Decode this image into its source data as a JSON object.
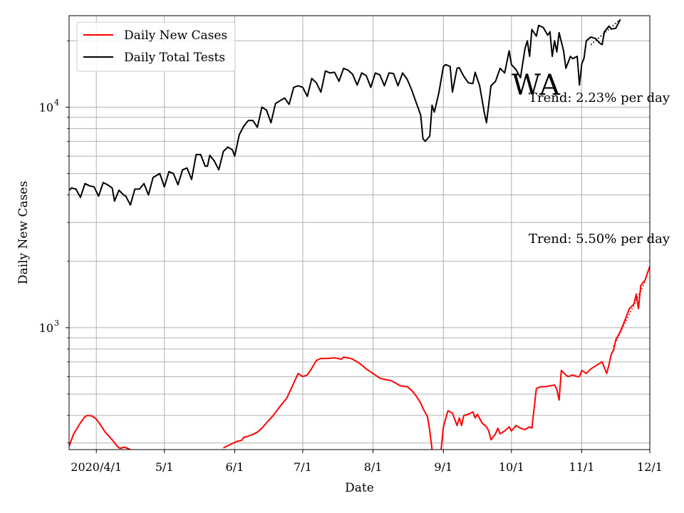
{
  "chart_data": {
    "type": "line",
    "title": "WA",
    "xlabel": "Date",
    "ylabel": "Daily New Cases",
    "yscale": "log",
    "ylim": [
      280,
      26000
    ],
    "xlim": [
      "2020-03-20",
      "2020-12-01"
    ],
    "x_ticks": [
      {
        "date": "2020-04-01",
        "label": "2020/4/1"
      },
      {
        "date": "2020-05-01",
        "label": "5/1"
      },
      {
        "date": "2020-06-01",
        "label": "6/1"
      },
      {
        "date": "2020-07-01",
        "label": "7/1"
      },
      {
        "date": "2020-08-01",
        "label": "8/1"
      },
      {
        "date": "2020-09-01",
        "label": "9/1"
      },
      {
        "date": "2020-10-01",
        "label": "10/1"
      },
      {
        "date": "2020-11-01",
        "label": "11/1"
      },
      {
        "date": "2020-12-01",
        "label": "12/1"
      }
    ],
    "y_ticks": [
      {
        "value": 1000,
        "base": "10",
        "exp": "3"
      },
      {
        "value": 10000,
        "base": "10",
        "exp": "4"
      }
    ],
    "grid": true,
    "legend": "top-left",
    "series": [
      {
        "name": "Daily New Cases",
        "color": "#ff0000",
        "points": [
          [
            "2020-03-20",
            290
          ],
          [
            "2020-03-22",
            330
          ],
          [
            "2020-03-25",
            370
          ],
          [
            "2020-03-27",
            395
          ],
          [
            "2020-03-28",
            400
          ],
          [
            "2020-03-30",
            398
          ],
          [
            "2020-04-01",
            385
          ],
          [
            "2020-04-03",
            360
          ],
          [
            "2020-04-05",
            335
          ],
          [
            "2020-04-08",
            310
          ],
          [
            "2020-04-10",
            292
          ],
          [
            "2020-04-11",
            285
          ],
          [
            "2020-04-12",
            284
          ],
          [
            "2020-04-13",
            287
          ],
          [
            "2020-04-14",
            286
          ],
          [
            "2020-04-16",
            280
          ],
          null,
          [
            "2020-05-27",
            285
          ],
          [
            "2020-05-30",
            295
          ],
          [
            "2020-06-02",
            305
          ],
          [
            "2020-06-04",
            308
          ],
          [
            "2020-06-05",
            318
          ],
          [
            "2020-06-07",
            322
          ],
          [
            "2020-06-09",
            328
          ],
          [
            "2020-06-11",
            336
          ],
          [
            "2020-06-13",
            350
          ],
          [
            "2020-06-15",
            370
          ],
          [
            "2020-06-18",
            400
          ],
          [
            "2020-06-21",
            440
          ],
          [
            "2020-06-24",
            480
          ],
          [
            "2020-06-27",
            560
          ],
          [
            "2020-06-29",
            620
          ],
          [
            "2020-07-01",
            600
          ],
          [
            "2020-07-03",
            610
          ],
          [
            "2020-07-05",
            655
          ],
          [
            "2020-07-07",
            710
          ],
          [
            "2020-07-09",
            725
          ],
          [
            "2020-07-12",
            725
          ],
          [
            "2020-07-15",
            730
          ],
          [
            "2020-07-18",
            720
          ],
          [
            "2020-07-19",
            735
          ],
          [
            "2020-07-21",
            730
          ],
          [
            "2020-07-23",
            720
          ],
          [
            "2020-07-26",
            690
          ],
          [
            "2020-07-29",
            650
          ],
          [
            "2020-08-01",
            620
          ],
          [
            "2020-08-04",
            590
          ],
          [
            "2020-08-07",
            580
          ],
          [
            "2020-08-09",
            575
          ],
          [
            "2020-08-11",
            560
          ],
          [
            "2020-08-13",
            545
          ],
          [
            "2020-08-16",
            540
          ],
          [
            "2020-08-18",
            520
          ],
          [
            "2020-08-20",
            490
          ],
          [
            "2020-08-22",
            455
          ],
          [
            "2020-08-23",
            430
          ],
          [
            "2020-08-25",
            395
          ],
          [
            "2020-08-26",
            340
          ],
          [
            "2020-08-27",
            280
          ],
          null,
          [
            "2020-08-31",
            280
          ],
          [
            "2020-09-01",
            355
          ],
          [
            "2020-09-03",
            420
          ],
          [
            "2020-09-05",
            410
          ],
          [
            "2020-09-07",
            360
          ],
          [
            "2020-09-08",
            390
          ],
          [
            "2020-09-09",
            360
          ],
          [
            "2020-09-10",
            400
          ],
          [
            "2020-09-12",
            405
          ],
          [
            "2020-09-14",
            415
          ],
          [
            "2020-09-15",
            390
          ],
          [
            "2020-09-16",
            405
          ],
          [
            "2020-09-18",
            370
          ],
          [
            "2020-09-20",
            355
          ],
          [
            "2020-09-21",
            340
          ],
          [
            "2020-09-22",
            310
          ],
          [
            "2020-09-24",
            330
          ],
          [
            "2020-09-25",
            350
          ],
          [
            "2020-09-26",
            330
          ],
          [
            "2020-09-28",
            340
          ],
          [
            "2020-09-30",
            355
          ],
          [
            "2020-10-01",
            340
          ],
          [
            "2020-10-03",
            360
          ],
          [
            "2020-10-05",
            350
          ],
          [
            "2020-10-07",
            345
          ],
          [
            "2020-10-09",
            355
          ],
          [
            "2020-10-10",
            350
          ],
          [
            "2020-10-12",
            530
          ],
          [
            "2020-10-14",
            540
          ],
          [
            "2020-10-16",
            540
          ],
          [
            "2020-10-18",
            545
          ],
          [
            "2020-10-20",
            550
          ],
          [
            "2020-10-21",
            525
          ],
          [
            "2020-10-22",
            470
          ],
          [
            "2020-10-23",
            640
          ],
          [
            "2020-10-25",
            610
          ],
          [
            "2020-10-26",
            600
          ],
          [
            "2020-10-28",
            610
          ],
          [
            "2020-10-30",
            600
          ],
          [
            "2020-10-31",
            600
          ],
          [
            "2020-11-01",
            640
          ],
          [
            "2020-11-03",
            620
          ],
          [
            "2020-11-05",
            650
          ],
          [
            "2020-11-07",
            670
          ],
          [
            "2020-11-09",
            690
          ],
          [
            "2020-11-10",
            700
          ],
          [
            "2020-11-12",
            620
          ],
          [
            "2020-11-13",
            680
          ],
          [
            "2020-11-14",
            760
          ],
          [
            "2020-11-15",
            790
          ],
          [
            "2020-11-16",
            880
          ],
          [
            "2020-11-18",
            960
          ],
          [
            "2020-11-20",
            1080
          ],
          [
            "2020-11-22",
            1220
          ],
          [
            "2020-11-24",
            1280
          ],
          [
            "2020-11-25",
            1420
          ],
          [
            "2020-11-26",
            1220
          ],
          [
            "2020-11-27",
            1550
          ],
          [
            "2020-11-29",
            1650
          ],
          [
            "2020-12-01",
            1900
          ]
        ]
      },
      {
        "name": "Daily Total Tests",
        "color": "#000000",
        "points": [
          [
            "2020-03-20",
            4200
          ],
          [
            "2020-03-21",
            4300
          ],
          [
            "2020-03-23",
            4250
          ],
          [
            "2020-03-25",
            3900
          ],
          [
            "2020-03-27",
            4500
          ],
          [
            "2020-03-29",
            4400
          ],
          [
            "2020-03-31",
            4350
          ],
          [
            "2020-04-02",
            3950
          ],
          [
            "2020-04-04",
            4550
          ],
          [
            "2020-04-06",
            4450
          ],
          [
            "2020-04-08",
            4300
          ],
          [
            "2020-04-09",
            3750
          ],
          [
            "2020-04-11",
            4200
          ],
          [
            "2020-04-13",
            4000
          ],
          [
            "2020-04-14",
            3950
          ],
          [
            "2020-04-16",
            3600
          ],
          [
            "2020-04-18",
            4250
          ],
          [
            "2020-04-20",
            4250
          ],
          [
            "2020-04-22",
            4500
          ],
          [
            "2020-04-24",
            4000
          ],
          [
            "2020-04-26",
            4800
          ],
          [
            "2020-04-29",
            5000
          ],
          [
            "2020-05-01",
            4350
          ],
          [
            "2020-05-03",
            5100
          ],
          [
            "2020-05-05",
            5000
          ],
          [
            "2020-05-07",
            4450
          ],
          [
            "2020-05-09",
            5200
          ],
          [
            "2020-05-11",
            5300
          ],
          [
            "2020-05-13",
            4700
          ],
          [
            "2020-05-15",
            6100
          ],
          [
            "2020-05-17",
            6100
          ],
          [
            "2020-05-19",
            5400
          ],
          [
            "2020-05-20",
            5400
          ],
          [
            "2020-05-21",
            6050
          ],
          [
            "2020-05-23",
            5700
          ],
          [
            "2020-05-25",
            5200
          ],
          [
            "2020-05-27",
            6300
          ],
          [
            "2020-05-29",
            6600
          ],
          [
            "2020-05-31",
            6400
          ],
          [
            "2020-06-01",
            6000
          ],
          [
            "2020-06-03",
            7500
          ],
          [
            "2020-06-05",
            8200
          ],
          [
            "2020-06-07",
            8700
          ],
          [
            "2020-06-09",
            8700
          ],
          [
            "2020-06-11",
            8100
          ],
          [
            "2020-06-13",
            10000
          ],
          [
            "2020-06-15",
            9700
          ],
          [
            "2020-06-17",
            8500
          ],
          [
            "2020-06-19",
            10400
          ],
          [
            "2020-06-21",
            10700
          ],
          [
            "2020-06-23",
            11000
          ],
          [
            "2020-06-25",
            10300
          ],
          [
            "2020-06-27",
            12300
          ],
          [
            "2020-06-29",
            12500
          ],
          [
            "2020-07-01",
            12300
          ],
          [
            "2020-07-03",
            11200
          ],
          [
            "2020-07-05",
            13500
          ],
          [
            "2020-07-07",
            12900
          ],
          [
            "2020-07-09",
            11700
          ],
          [
            "2020-07-11",
            14600
          ],
          [
            "2020-07-13",
            14300
          ],
          [
            "2020-07-15",
            14400
          ],
          [
            "2020-07-17",
            13100
          ],
          [
            "2020-07-19",
            15000
          ],
          [
            "2020-07-21",
            14700
          ],
          [
            "2020-07-23",
            14100
          ],
          [
            "2020-07-25",
            12600
          ],
          [
            "2020-07-27",
            14300
          ],
          [
            "2020-07-29",
            13900
          ],
          [
            "2020-07-31",
            12300
          ],
          [
            "2020-08-02",
            14300
          ],
          [
            "2020-08-04",
            14000
          ],
          [
            "2020-08-06",
            12500
          ],
          [
            "2020-08-08",
            14300
          ],
          [
            "2020-08-10",
            14200
          ],
          [
            "2020-08-12",
            12500
          ],
          [
            "2020-08-14",
            14300
          ],
          [
            "2020-08-16",
            13400
          ],
          [
            "2020-08-18",
            12000
          ],
          [
            "2020-08-20",
            10500
          ],
          [
            "2020-08-22",
            9200
          ],
          [
            "2020-08-23",
            7200
          ],
          [
            "2020-08-24",
            7000
          ],
          [
            "2020-08-26",
            7400
          ],
          [
            "2020-08-27",
            10200
          ],
          [
            "2020-08-28",
            9500
          ],
          [
            "2020-08-30",
            11600
          ],
          [
            "2020-09-01",
            15300
          ],
          [
            "2020-09-02",
            15600
          ],
          [
            "2020-09-04",
            15300
          ],
          [
            "2020-09-05",
            11700
          ],
          [
            "2020-09-07",
            15000
          ],
          [
            "2020-09-08",
            15100
          ],
          [
            "2020-09-10",
            13800
          ],
          [
            "2020-09-12",
            12900
          ],
          [
            "2020-09-14",
            12800
          ],
          [
            "2020-09-15",
            14400
          ],
          [
            "2020-09-17",
            12500
          ],
          [
            "2020-09-19",
            9500
          ],
          [
            "2020-09-20",
            8500
          ],
          [
            "2020-09-22",
            12500
          ],
          [
            "2020-09-24",
            13100
          ],
          [
            "2020-09-26",
            15000
          ],
          [
            "2020-09-28",
            14300
          ],
          [
            "2020-09-30",
            18000
          ],
          [
            "2020-10-01",
            15600
          ],
          [
            "2020-10-03",
            14800
          ],
          [
            "2020-10-05",
            13600
          ],
          [
            "2020-10-07",
            18500
          ],
          [
            "2020-10-08",
            20000
          ],
          [
            "2020-10-09",
            17000
          ],
          [
            "2020-10-10",
            22500
          ],
          [
            "2020-10-12",
            21000
          ],
          [
            "2020-10-13",
            23500
          ],
          [
            "2020-10-15",
            23000
          ],
          [
            "2020-10-17",
            21200
          ],
          [
            "2020-10-18",
            22000
          ],
          [
            "2020-10-19",
            17000
          ],
          [
            "2020-10-20",
            20000
          ],
          [
            "2020-10-21",
            17800
          ],
          [
            "2020-10-22",
            21800
          ],
          [
            "2020-10-24",
            18000
          ],
          [
            "2020-10-25",
            15000
          ],
          [
            "2020-10-27",
            17000
          ],
          [
            "2020-10-28",
            16600
          ],
          [
            "2020-10-30",
            17000
          ],
          [
            "2020-10-31",
            12600
          ],
          [
            "2020-11-01",
            15700
          ],
          [
            "2020-11-02",
            16700
          ],
          [
            "2020-11-03",
            20000
          ],
          [
            "2020-11-05",
            20800
          ],
          [
            "2020-11-07",
            20500
          ],
          [
            "2020-11-09",
            19500
          ],
          [
            "2020-11-10",
            19200
          ],
          [
            "2020-11-11",
            22000
          ],
          [
            "2020-11-13",
            23300
          ],
          [
            "2020-11-14",
            22600
          ],
          [
            "2020-11-16",
            22800
          ],
          [
            "2020-11-18",
            25000
          ]
        ]
      }
    ],
    "trend_lines": [
      {
        "series": "Daily New Cases",
        "points": [
          [
            "2020-11-15",
            820
          ],
          [
            "2020-11-29",
            1620
          ]
        ]
      },
      {
        "series": "Daily Total Tests",
        "points": [
          [
            "2020-11-05",
            19200
          ],
          [
            "2020-11-18",
            25000
          ]
        ]
      }
    ],
    "annotations": [
      {
        "text": "Trend: 2.23% per day",
        "near": "Daily Total Tests"
      },
      {
        "text": "Trend: 5.50% per day",
        "near": "Daily New Cases"
      }
    ]
  }
}
